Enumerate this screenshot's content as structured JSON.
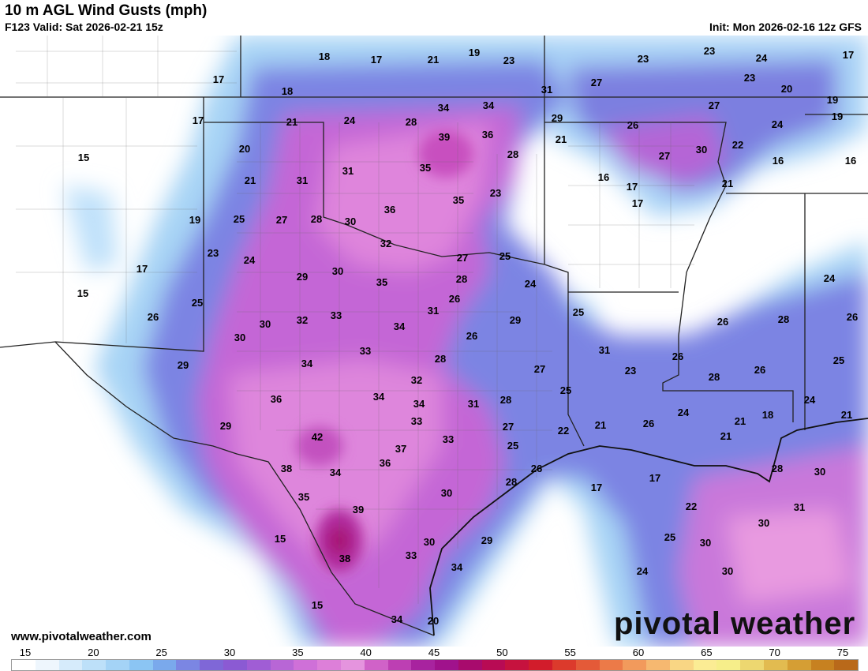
{
  "header": {
    "title": "10 m AGL Wind Gusts (mph)",
    "valid": "F123 Valid: Sat 2026-02-21 15z",
    "init": "Init: Mon 2026-02-16 12z GFS"
  },
  "footer": {
    "website": "www.pivotalweather.com",
    "brand": "pivotal weather"
  },
  "legend": {
    "ticks": [
      "15",
      "20",
      "25",
      "30",
      "35",
      "40",
      "45",
      "50",
      "55",
      "60",
      "65",
      "70",
      "75"
    ],
    "colors": [
      "#ffffff",
      "#eef6fd",
      "#d6ebfb",
      "#bde0f9",
      "#a4d3f6",
      "#8bc5f3",
      "#7aa9ec",
      "#7b86e3",
      "#7f67d7",
      "#8b5ad3",
      "#a05dd5",
      "#b866d6",
      "#cf70d8",
      "#dd7fd9",
      "#e594de",
      "#d062c8",
      "#bd3fb3",
      "#a8239f",
      "#a0128c",
      "#a80b6d",
      "#b80b54",
      "#c6123e",
      "#d21c2b",
      "#dc3a2c",
      "#e45a38",
      "#ec7a48",
      "#f29a5c",
      "#f6b870",
      "#f9d684",
      "#fbec94",
      "#f6ee8a",
      "#edd770",
      "#e2bb50",
      "#d59e34",
      "#c78120",
      "#b9691a"
    ]
  },
  "map": {
    "gust_labels": [
      {
        "v": "17"
      },
      {
        "v": "18"
      },
      {
        "v": "17"
      },
      {
        "v": "21"
      },
      {
        "v": "19"
      },
      {
        "v": "23"
      },
      {
        "v": "23"
      },
      {
        "v": "23"
      },
      {
        "v": "24"
      },
      {
        "v": "17"
      },
      {
        "v": "18"
      },
      {
        "v": "31"
      },
      {
        "v": "27"
      },
      {
        "v": "23"
      },
      {
        "v": "20"
      },
      {
        "v": "19"
      },
      {
        "v": "27"
      },
      {
        "v": "34"
      },
      {
        "v": "34"
      },
      {
        "v": "17"
      },
      {
        "v": "21"
      },
      {
        "v": "24"
      },
      {
        "v": "28"
      },
      {
        "v": "29"
      },
      {
        "v": "19"
      },
      {
        "v": "39"
      },
      {
        "v": "36"
      },
      {
        "v": "21"
      },
      {
        "v": "26"
      },
      {
        "v": "24"
      },
      {
        "v": "20"
      },
      {
        "v": "28"
      },
      {
        "v": "30"
      },
      {
        "v": "22"
      },
      {
        "v": "15"
      },
      {
        "v": "35"
      },
      {
        "v": "27"
      },
      {
        "v": "16"
      },
      {
        "v": "16"
      },
      {
        "v": "31"
      },
      {
        "v": "21"
      },
      {
        "v": "31"
      },
      {
        "v": "16"
      },
      {
        "v": "17"
      },
      {
        "v": "21"
      },
      {
        "v": "23"
      },
      {
        "v": "36"
      },
      {
        "v": "35"
      },
      {
        "v": "17"
      },
      {
        "v": "19"
      },
      {
        "v": "25"
      },
      {
        "v": "27"
      },
      {
        "v": "28"
      },
      {
        "v": "30"
      },
      {
        "v": "32"
      },
      {
        "v": "23"
      },
      {
        "v": "27"
      },
      {
        "v": "25"
      },
      {
        "v": "24"
      },
      {
        "v": "17"
      },
      {
        "v": "29"
      },
      {
        "v": "30"
      },
      {
        "v": "35"
      },
      {
        "v": "28"
      },
      {
        "v": "24"
      },
      {
        "v": "24"
      },
      {
        "v": "15"
      },
      {
        "v": "25"
      },
      {
        "v": "26"
      },
      {
        "v": "31"
      },
      {
        "v": "25"
      },
      {
        "v": "26"
      },
      {
        "v": "26"
      },
      {
        "v": "28"
      },
      {
        "v": "26"
      },
      {
        "v": "30"
      },
      {
        "v": "32"
      },
      {
        "v": "33"
      },
      {
        "v": "34"
      },
      {
        "v": "29"
      },
      {
        "v": "30"
      },
      {
        "v": "26"
      },
      {
        "v": "31"
      },
      {
        "v": "29"
      },
      {
        "v": "33"
      },
      {
        "v": "28"
      },
      {
        "v": "26"
      },
      {
        "v": "25"
      },
      {
        "v": "34"
      },
      {
        "v": "23"
      },
      {
        "v": "27"
      },
      {
        "v": "28"
      },
      {
        "v": "26"
      },
      {
        "v": "32"
      },
      {
        "v": "25"
      },
      {
        "v": "36"
      },
      {
        "v": "34"
      },
      {
        "v": "34"
      },
      {
        "v": "31"
      },
      {
        "v": "28"
      },
      {
        "v": "33"
      },
      {
        "v": "24"
      },
      {
        "v": "18"
      },
      {
        "v": "24"
      },
      {
        "v": "29"
      },
      {
        "v": "26"
      },
      {
        "v": "27"
      },
      {
        "v": "22"
      },
      {
        "v": "21"
      },
      {
        "v": "21"
      },
      {
        "v": "42"
      },
      {
        "v": "33"
      },
      {
        "v": "21"
      },
      {
        "v": "37"
      },
      {
        "v": "25"
      },
      {
        "v": "21"
      },
      {
        "v": "38"
      },
      {
        "v": "36"
      },
      {
        "v": "34"
      },
      {
        "v": "26"
      },
      {
        "v": "28"
      },
      {
        "v": "28"
      },
      {
        "v": "30"
      },
      {
        "v": "30"
      },
      {
        "v": "17"
      },
      {
        "v": "17"
      },
      {
        "v": "35"
      },
      {
        "v": "31"
      },
      {
        "v": "39"
      },
      {
        "v": "22"
      },
      {
        "v": "30"
      },
      {
        "v": "15"
      },
      {
        "v": "29"
      },
      {
        "v": "30"
      },
      {
        "v": "25"
      },
      {
        "v": "30"
      },
      {
        "v": "33"
      },
      {
        "v": "38"
      },
      {
        "v": "34"
      },
      {
        "v": "24"
      },
      {
        "v": "30"
      },
      {
        "v": "15"
      },
      {
        "v": "34"
      },
      {
        "v": "20"
      }
    ]
  }
}
